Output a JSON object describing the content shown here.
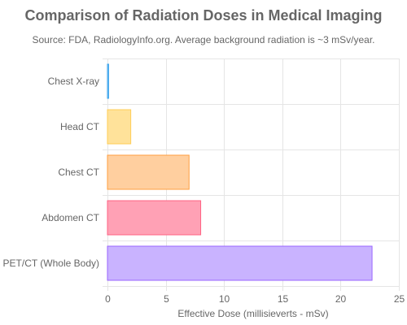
{
  "chart_data": {
    "type": "bar",
    "orientation": "horizontal",
    "title": "Comparison of Radiation Doses in Medical Imaging",
    "subtitle": "Source: FDA, RadiologyInfo.org. Average background radiation is ~3 mSv/year.",
    "categories": [
      "Chest X-ray",
      "Head CT",
      "Chest CT",
      "Abdomen CT",
      "PET/CT (Whole Body)"
    ],
    "values": [
      0.1,
      2,
      7,
      8,
      22.7
    ],
    "xlabel": "Effective Dose (millisieverts - mSv)",
    "ylabel": "",
    "xlim": [
      0,
      25
    ],
    "xticks": [
      "0",
      "5",
      "10",
      "15",
      "20",
      "25"
    ],
    "grid": true,
    "bar_colors": [
      {
        "fill": "#9ad0f5",
        "stroke": "#36a2eb"
      },
      {
        "fill": "#ffe29a",
        "stroke": "#ffcd56"
      },
      {
        "fill": "#ffcf9f",
        "stroke": "#ff9f40"
      },
      {
        "fill": "#ffa1b5",
        "stroke": "#ff6384"
      },
      {
        "fill": "#c9b3ff",
        "stroke": "#9966ff"
      }
    ]
  }
}
